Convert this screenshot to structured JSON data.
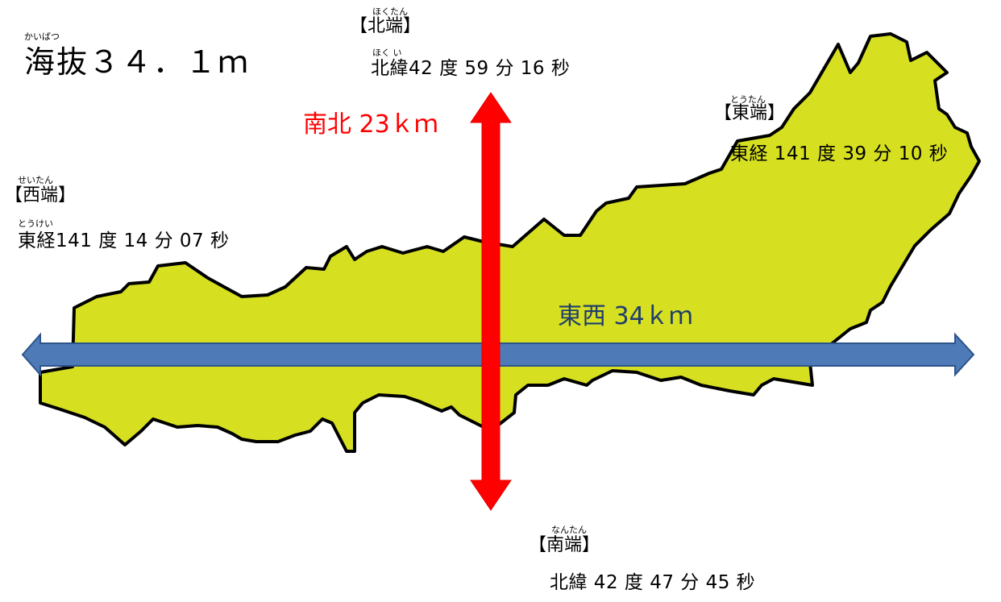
{
  "elevation": {
    "reading": "かいばつ",
    "text": "海抜３４．１ｍ"
  },
  "north": {
    "reading": "ほくたん",
    "label": "【北端】",
    "coord_reading": "ほく い",
    "coord": "北緯42 度 59 分 16 秒"
  },
  "east": {
    "reading": "とうたん",
    "label": "【東端】",
    "coord": "東経 141 度 39 分 10 秒"
  },
  "west": {
    "reading": "せいたん",
    "label": "【西端】",
    "coord_reading": "とうけい",
    "coord": "東経141 度 14 分 07 秒"
  },
  "south": {
    "reading": "なんたん",
    "label": "【南端】",
    "coord": "北緯 42 度 47 分 45 秒"
  },
  "ns_distance": {
    "text": "南北 23ｋｍ",
    "color": "#ff0000"
  },
  "ew_distance": {
    "text": "東西 34ｋｍ",
    "color": "#1f3d6e"
  },
  "colors": {
    "land": "#d6e021",
    "ns_arrow": "#ff0000",
    "ew_arrow": "#4f7ab8"
  }
}
